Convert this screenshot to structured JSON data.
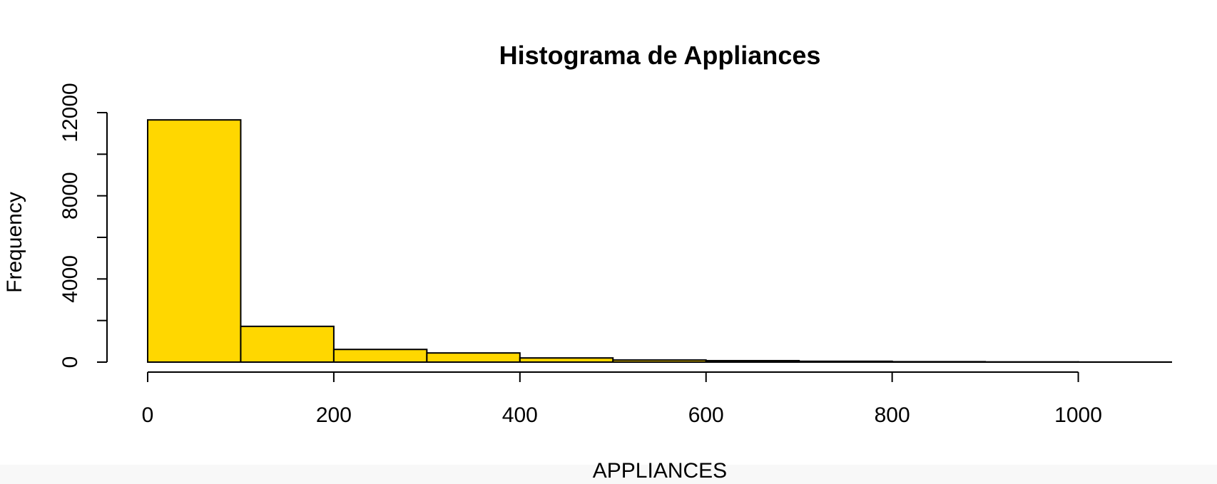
{
  "chart_data": {
    "type": "bar",
    "title": "Histograma de Appliances",
    "xlabel": "APPLIANCES",
    "ylabel": "Frequency",
    "bin_edges": [
      0,
      100,
      200,
      300,
      400,
      500,
      600,
      700,
      800,
      900,
      1000,
      1100
    ],
    "values": [
      11650,
      1720,
      610,
      440,
      200,
      100,
      70,
      40,
      20,
      10,
      5
    ],
    "xlim": [
      0,
      1100
    ],
    "ylim": [
      0,
      12000
    ],
    "x_ticks": [
      0,
      200,
      400,
      600,
      800,
      1000
    ],
    "x_tick_labels": [
      "0",
      "200",
      "400",
      "600",
      "800",
      "1000"
    ],
    "y_ticks": [
      0,
      2000,
      4000,
      6000,
      8000,
      10000,
      12000
    ],
    "y_tick_labels": [
      "0",
      "",
      "4000",
      "",
      "8000",
      "",
      "12000"
    ],
    "bar_color": "#FFD700",
    "grid": false,
    "legend": "none"
  }
}
